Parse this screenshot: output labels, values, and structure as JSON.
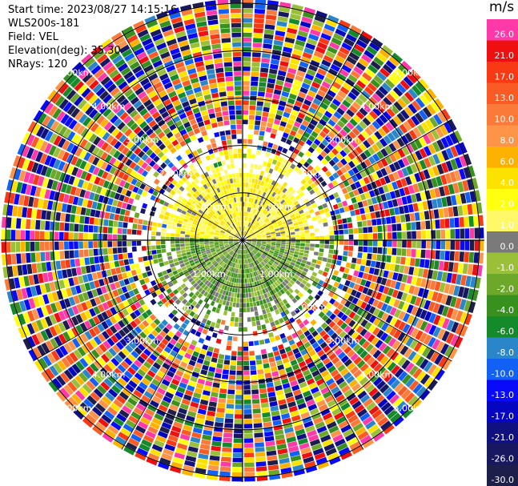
{
  "header": {
    "start_time": "Start time: 2023/08/27 14:15:16",
    "instrument": "WLS200s-181",
    "field": "Field: VEL",
    "elevation": "Elevation(deg): 35.30",
    "nrays": "NRays: 120"
  },
  "chart_data": {
    "type": "heatmap",
    "projection": "polar-ppi",
    "field": "VEL",
    "units": "m/s",
    "range_rings_km": [
      1,
      2,
      3,
      4,
      5
    ],
    "ring_labels": [
      "1.00km",
      "2.00km",
      "3.00km",
      "4.00km",
      "5.00km"
    ],
    "max_range_km": 5.0,
    "nrays": 120,
    "colorbar": {
      "title": "m/s",
      "levels": [
        {
          "label": "26.0",
          "color": "#ff3aa8"
        },
        {
          "label": "21.0",
          "color": "#ee1010"
        },
        {
          "label": "17.0",
          "color": "#f83a14"
        },
        {
          "label": "13.0",
          "color": "#fa5a24"
        },
        {
          "label": "10.0",
          "color": "#fb7a3a"
        },
        {
          "label": "8.0",
          "color": "#fd9448"
        },
        {
          "label": "6.0",
          "color": "#fdb200"
        },
        {
          "label": "4.0",
          "color": "#fde200"
        },
        {
          "label": "2.0",
          "color": "#ffff10"
        },
        {
          "label": "1.0",
          "color": "#fff868"
        },
        {
          "label": "0.0",
          "color": "#7a7a7a"
        },
        {
          "label": "-1.0",
          "color": "#9ac03a"
        },
        {
          "label": "-2.0",
          "color": "#6ea82a"
        },
        {
          "label": "-4.0",
          "color": "#38901e"
        },
        {
          "label": "-6.0",
          "color": "#148a2a"
        },
        {
          "label": "-8.0",
          "color": "#2a86c8"
        },
        {
          "label": "-10.0",
          "color": "#1260f4"
        },
        {
          "label": "-13.0",
          "color": "#0a0afa"
        },
        {
          "label": "-17.0",
          "color": "#0606c0"
        },
        {
          "label": "-21.0",
          "color": "#101080"
        },
        {
          "label": "-26.0",
          "color": "#181860"
        },
        {
          "label": "-30.0",
          "color": "#1e1e4a"
        }
      ]
    }
  }
}
